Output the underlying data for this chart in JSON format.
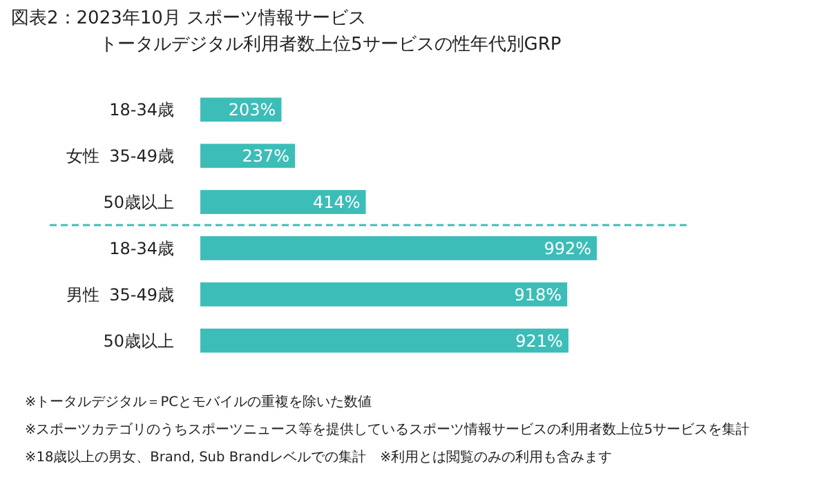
{
  "chart_data": {
    "type": "bar",
    "orientation": "horizontal",
    "title": "図表2：2023年10月 スポーツ情報サービス",
    "subtitle": "トータルデジタル利用者数上位5サービスの性年代別GRP",
    "categories": [
      "18-34歳",
      "35-49歳",
      "50歳以上",
      "18-34歳",
      "35-49歳",
      "50歳以上"
    ],
    "values": [
      203,
      237,
      414,
      992,
      918,
      921
    ],
    "value_labels": [
      "203%",
      "237%",
      "414%",
      "992%",
      "918%",
      "921%"
    ],
    "color": "#3dbdb8",
    "annotations": [
      "女性",
      "男性",
      "※トータルデジタル＝PCとモバイルの重複を除いた数値",
      "※スポーツカテゴリのうちスポーツニュース等を提供しているスポーツ情報サービスの利用者数上位5サービスを集計",
      "※18歳以上の男女、Brand, Sub Brandレベルでの集計　※利用とは閲覧のみの利用も含みます"
    ]
  }
}
